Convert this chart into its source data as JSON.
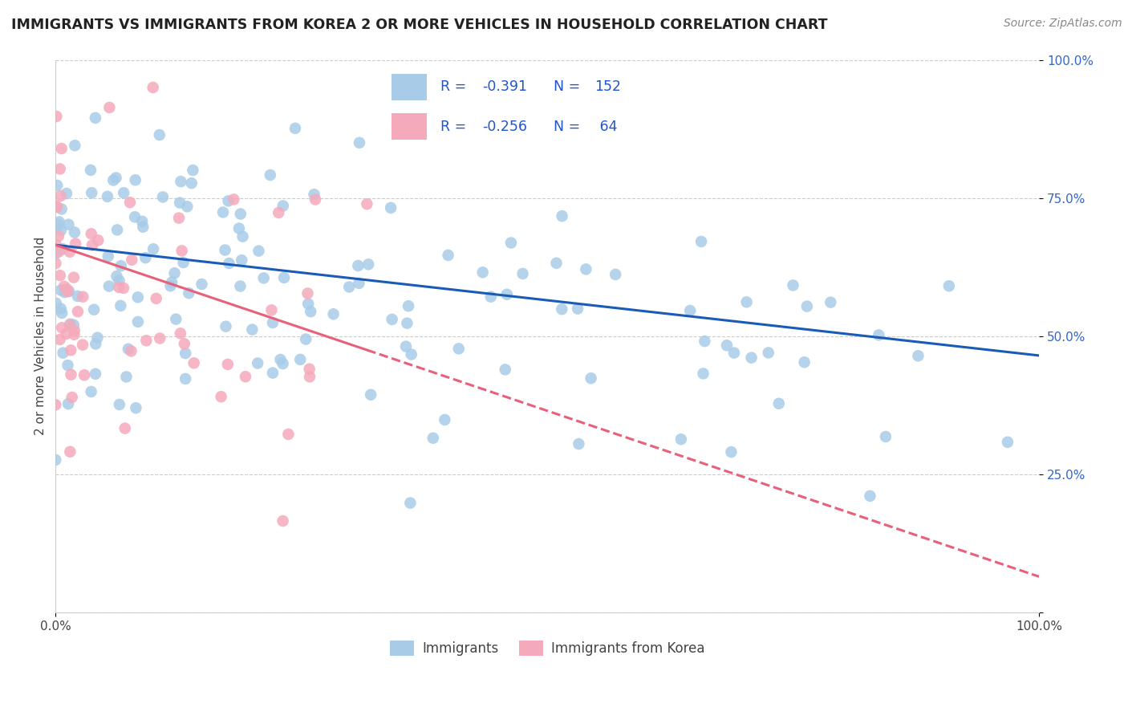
{
  "title": "IMMIGRANTS VS IMMIGRANTS FROM KOREA 2 OR MORE VEHICLES IN HOUSEHOLD CORRELATION CHART",
  "source": "Source: ZipAtlas.com",
  "ylabel": "2 or more Vehicles in Household",
  "legend_label1": "Immigrants",
  "legend_label2": "Immigrants from Korea",
  "R1": -0.391,
  "N1": 152,
  "R2": -0.256,
  "N2": 64,
  "color_blue": "#a8cce8",
  "color_pink": "#f5aabb",
  "line_blue": "#1a5cb5",
  "line_pink": "#e8607a",
  "legend_text_color": "#2255cc",
  "background": "#ffffff",
  "grid_color": "#cccccc",
  "ytick_color": "#3366cc",
  "title_fontsize": 12.5,
  "source_fontsize": 10,
  "axis_fontsize": 11
}
